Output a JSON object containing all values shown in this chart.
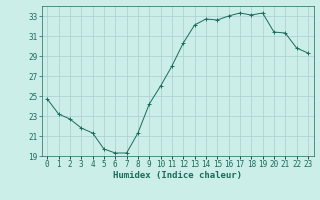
{
  "x": [
    0,
    1,
    2,
    3,
    4,
    5,
    6,
    7,
    8,
    9,
    10,
    11,
    12,
    13,
    14,
    15,
    16,
    17,
    18,
    19,
    20,
    21,
    22,
    23
  ],
  "y": [
    24.7,
    23.2,
    22.7,
    21.8,
    21.3,
    19.7,
    19.3,
    19.3,
    21.3,
    24.2,
    26.0,
    28.0,
    30.3,
    32.1,
    32.7,
    32.6,
    33.0,
    33.3,
    33.1,
    33.3,
    31.4,
    31.3,
    29.8,
    29.3
  ],
  "line_color": "#1a6b5a",
  "marker": "+",
  "bg_color": "#cceee8",
  "grid_color": "#aacccc",
  "xlabel": "Humidex (Indice chaleur)",
  "xlim": [
    -0.5,
    23.5
  ],
  "ylim": [
    19,
    34
  ],
  "yticks": [
    19,
    21,
    23,
    25,
    27,
    29,
    31,
    33
  ],
  "tick_color": "#1a6b5a",
  "label_fontsize": 6.5,
  "tick_fontsize": 5.5
}
